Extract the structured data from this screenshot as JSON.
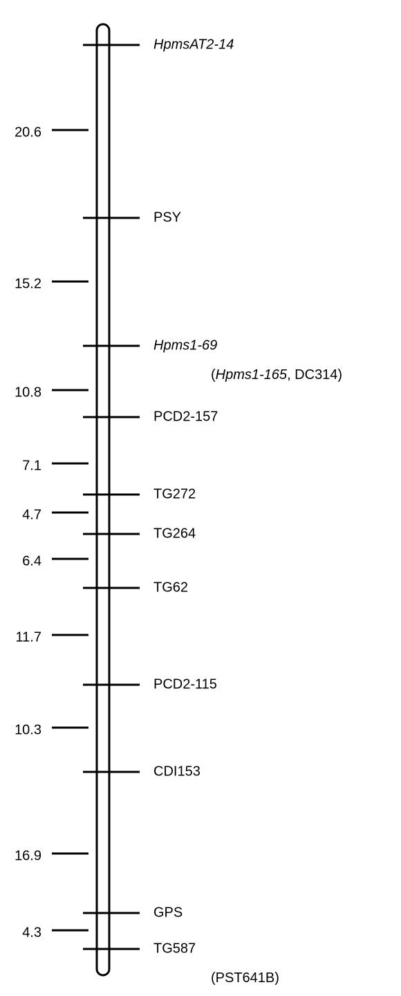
{
  "markers": [
    {
      "label": "HpmsAT2-14",
      "italic": true
    },
    {
      "label": "PSY",
      "italic": false
    },
    {
      "label": "Hpms1-69",
      "italic": true,
      "note": [
        {
          "text": "(",
          "italic": false
        },
        {
          "text": "Hpms1-165",
          "italic": true
        },
        {
          "text": ", DC314)",
          "italic": false
        }
      ]
    },
    {
      "label": "PCD2-157",
      "italic": false
    },
    {
      "label": "TG272",
      "italic": false
    },
    {
      "label": "TG264",
      "italic": false
    },
    {
      "label": "TG62",
      "italic": false
    },
    {
      "label": "PCD2-115",
      "italic": false
    },
    {
      "label": "CDI153",
      "italic": false
    },
    {
      "label": "GPS",
      "italic": false
    },
    {
      "label": "TG587",
      "italic": false,
      "note": [
        {
          "text": "(PST641B)",
          "italic": false
        }
      ]
    }
  ],
  "distances": [
    20.6,
    15.2,
    10.8,
    7.1,
    4.7,
    6.4,
    11.7,
    10.3,
    16.9,
    4.3
  ]
}
